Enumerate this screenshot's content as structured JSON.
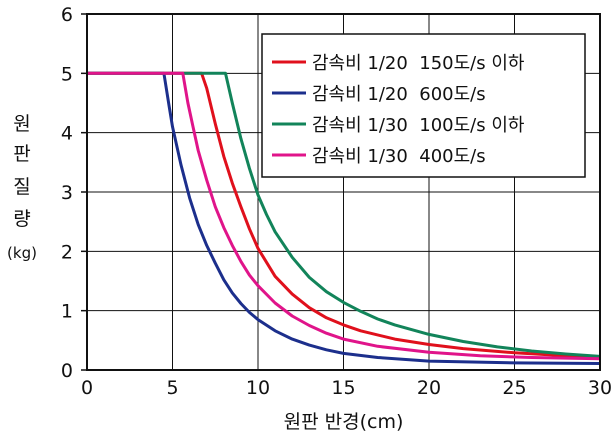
{
  "chart_data": {
    "type": "line",
    "xlabel": "원판 반경(cm)",
    "ylabel_lines": [
      "원",
      "판",
      "질",
      "량",
      "(kg)"
    ],
    "xlim": [
      0,
      30
    ],
    "ylim": [
      0,
      6
    ],
    "x_ticks": [
      "0",
      "5",
      "10",
      "15",
      "20",
      "25",
      "30"
    ],
    "y_ticks": [
      "0",
      "1",
      "2",
      "3",
      "4",
      "5",
      "6"
    ],
    "grid": true,
    "legend_position": "top-right",
    "series": [
      {
        "name": "감속비 1/20  150도/s 이하",
        "color": "#e0101c",
        "points": [
          [
            0,
            5
          ],
          [
            6.7,
            5
          ],
          [
            7,
            4.75
          ],
          [
            7.5,
            4.15
          ],
          [
            8,
            3.6
          ],
          [
            8.5,
            3.15
          ],
          [
            9,
            2.75
          ],
          [
            9.5,
            2.38
          ],
          [
            10,
            2.05
          ],
          [
            11,
            1.58
          ],
          [
            12,
            1.28
          ],
          [
            13,
            1.05
          ],
          [
            14,
            0.88
          ],
          [
            15,
            0.76
          ],
          [
            16,
            0.66
          ],
          [
            18,
            0.52
          ],
          [
            20,
            0.43
          ],
          [
            22,
            0.36
          ],
          [
            25,
            0.29
          ],
          [
            28,
            0.24
          ],
          [
            30,
            0.22
          ]
        ]
      },
      {
        "name": "감속비 1/20  600도/s",
        "color": "#1c2f8c",
        "points": [
          [
            0,
            5
          ],
          [
            4.5,
            5
          ],
          [
            4.8,
            4.45
          ],
          [
            5,
            4.1
          ],
          [
            5.5,
            3.45
          ],
          [
            6,
            2.9
          ],
          [
            6.5,
            2.45
          ],
          [
            7,
            2.1
          ],
          [
            7.5,
            1.8
          ],
          [
            8,
            1.52
          ],
          [
            8.5,
            1.3
          ],
          [
            9,
            1.12
          ],
          [
            9.5,
            0.97
          ],
          [
            10,
            0.85
          ],
          [
            11,
            0.66
          ],
          [
            12,
            0.52
          ],
          [
            13,
            0.42
          ],
          [
            14,
            0.34
          ],
          [
            15,
            0.28
          ],
          [
            17,
            0.21
          ],
          [
            20,
            0.15
          ],
          [
            25,
            0.12
          ],
          [
            30,
            0.11
          ]
        ]
      },
      {
        "name": "감속비 1/30  100도/s 이하",
        "color": "#12845a",
        "points": [
          [
            0,
            5
          ],
          [
            8.1,
            5
          ],
          [
            8.5,
            4.5
          ],
          [
            9,
            3.9
          ],
          [
            9.5,
            3.4
          ],
          [
            10,
            2.95
          ],
          [
            10.5,
            2.62
          ],
          [
            11,
            2.33
          ],
          [
            12,
            1.9
          ],
          [
            13,
            1.56
          ],
          [
            14,
            1.32
          ],
          [
            15,
            1.14
          ],
          [
            16,
            0.99
          ],
          [
            17,
            0.86
          ],
          [
            18,
            0.76
          ],
          [
            20,
            0.6
          ],
          [
            22,
            0.48
          ],
          [
            24,
            0.39
          ],
          [
            26,
            0.32
          ],
          [
            28,
            0.27
          ],
          [
            30,
            0.23
          ]
        ]
      },
      {
        "name": "감속비 1/30  400도/s",
        "color": "#e0148a",
        "points": [
          [
            0,
            5
          ],
          [
            5.6,
            5
          ],
          [
            5.9,
            4.5
          ],
          [
            6.2,
            4.1
          ],
          [
            6.5,
            3.7
          ],
          [
            7,
            3.2
          ],
          [
            7.5,
            2.75
          ],
          [
            8,
            2.4
          ],
          [
            8.5,
            2.1
          ],
          [
            9,
            1.83
          ],
          [
            9.5,
            1.6
          ],
          [
            10,
            1.42
          ],
          [
            11,
            1.13
          ],
          [
            12,
            0.91
          ],
          [
            13,
            0.75
          ],
          [
            14,
            0.62
          ],
          [
            15,
            0.52
          ],
          [
            17,
            0.4
          ],
          [
            20,
            0.3
          ],
          [
            23,
            0.24
          ],
          [
            26,
            0.21
          ],
          [
            30,
            0.19
          ]
        ]
      }
    ]
  }
}
